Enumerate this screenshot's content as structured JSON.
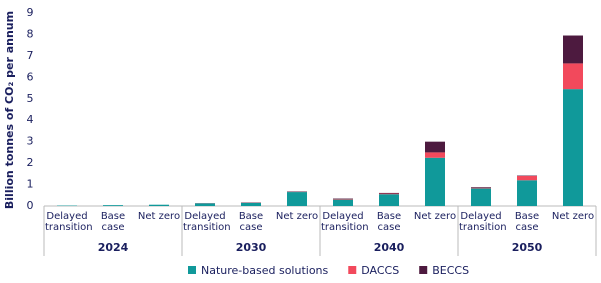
{
  "chart_data": {
    "type": "stacked-bar",
    "y_label": "Billion tonnes of CO₂ per annum",
    "categories": [
      "Delayed transition",
      "Base case",
      "Net zero",
      "Delayed transition",
      "Base case",
      "Net zero",
      "Delayed transition",
      "Base case",
      "Net zero",
      "Delayed transition",
      "Base case",
      "Net zero"
    ],
    "groups": [
      "2024",
      "2030",
      "2040",
      "2050"
    ],
    "series": [
      {
        "name": "Nature-based solutions",
        "color": "#10999a",
        "values": [
          0.02,
          0.04,
          0.06,
          0.12,
          0.15,
          0.65,
          0.3,
          0.55,
          2.25,
          0.82,
          1.2,
          5.45
        ]
      },
      {
        "name": "DACCS",
        "color": "#f2495c",
        "values": [
          0,
          0,
          0,
          0,
          0.01,
          0.01,
          0.03,
          0.03,
          0.25,
          0.03,
          0.2,
          1.2
        ]
      },
      {
        "name": "BECCS",
        "color": "#4d1a3f",
        "values": [
          0,
          0,
          0,
          0.01,
          0.01,
          0.02,
          0.02,
          0.03,
          0.5,
          0.03,
          0.02,
          1.3
        ]
      }
    ],
    "ylim": [
      0,
      9
    ],
    "yticks": [
      0,
      1,
      2,
      3,
      4,
      5,
      6,
      7,
      8,
      9
    ],
    "grid": false
  }
}
